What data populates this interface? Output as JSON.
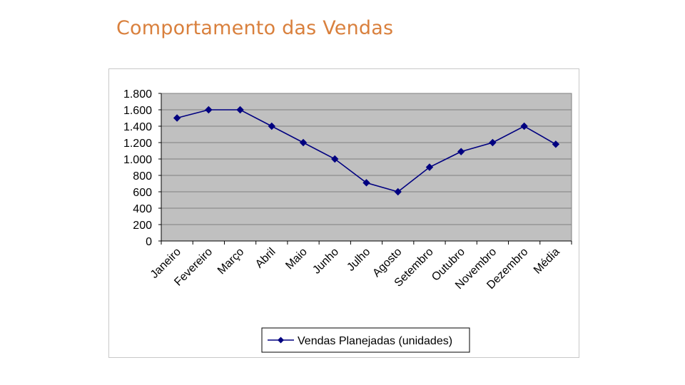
{
  "slide": {
    "title": "Comportamento das Vendas",
    "title_color": "#D9803D"
  },
  "chart_data": {
    "type": "line",
    "categories": [
      "Janeiro",
      "Fevereiro",
      "Março",
      "Abril",
      "Maio",
      "Junho",
      "Julho",
      "Agosto",
      "Setembro",
      "Outubro",
      "Novembro",
      "Dezembro",
      "Média"
    ],
    "series": [
      {
        "name": "Vendas Planejadas (unidades)",
        "values": [
          1500,
          1600,
          1600,
          1400,
          1200,
          1000,
          710,
          600,
          900,
          1090,
          1200,
          1400,
          1180
        ],
        "color": "#000080",
        "marker": "diamond"
      }
    ],
    "title": "",
    "xlabel": "",
    "ylabel": "",
    "ylim": [
      0,
      1800
    ],
    "yticks": [
      0,
      200,
      400,
      600,
      800,
      1000,
      1200,
      1400,
      1600,
      1800
    ],
    "ytick_labels": [
      "0",
      "200",
      "400",
      "600",
      "800",
      "1.000",
      "1.200",
      "1.400",
      "1.600",
      "1.800"
    ],
    "grid": true,
    "plot_background": "#C0C0C0",
    "gridline_color": "#808080",
    "legend_position": "bottom"
  }
}
